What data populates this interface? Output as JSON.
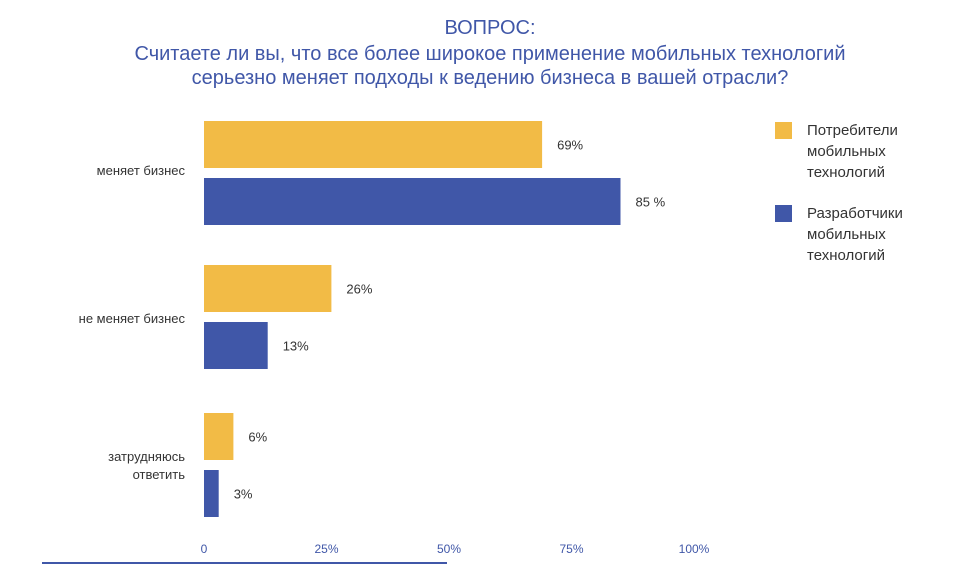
{
  "title": {
    "line1": "ВОПРОС:",
    "line2": "Считаете ли вы, что все более широкое применение мобильных технологий",
    "line3": "серьезно меняет подходы к ведению бизнеса в вашей отрасли?"
  },
  "legend": {
    "items": [
      {
        "label": "Потребители мобильных технологий",
        "color": "#f2bb46"
      },
      {
        "label": "Разработчики мобильных технологий",
        "color": "#4057a8"
      }
    ]
  },
  "chart_data": {
    "type": "bar",
    "orientation": "horizontal",
    "categories": [
      "меняет бизнес",
      "не меняет бизнес",
      "затрудняюсь ответить"
    ],
    "series": [
      {
        "name": "Потребители мобильных технологий",
        "color": "#f2bb46",
        "values": [
          69,
          26,
          6
        ],
        "labels": [
          "69%",
          "26%",
          "6%"
        ]
      },
      {
        "name": "Разработчики мобильных технологий",
        "color": "#4057a8",
        "values": [
          85,
          13,
          3
        ],
        "labels": [
          "85 %",
          "13%",
          "3%"
        ]
      }
    ],
    "xticks": [
      "0",
      "25%",
      "50%",
      "75%",
      "100%"
    ],
    "xlim": [
      0,
      100
    ],
    "legend_position": "right",
    "grid": false
  }
}
